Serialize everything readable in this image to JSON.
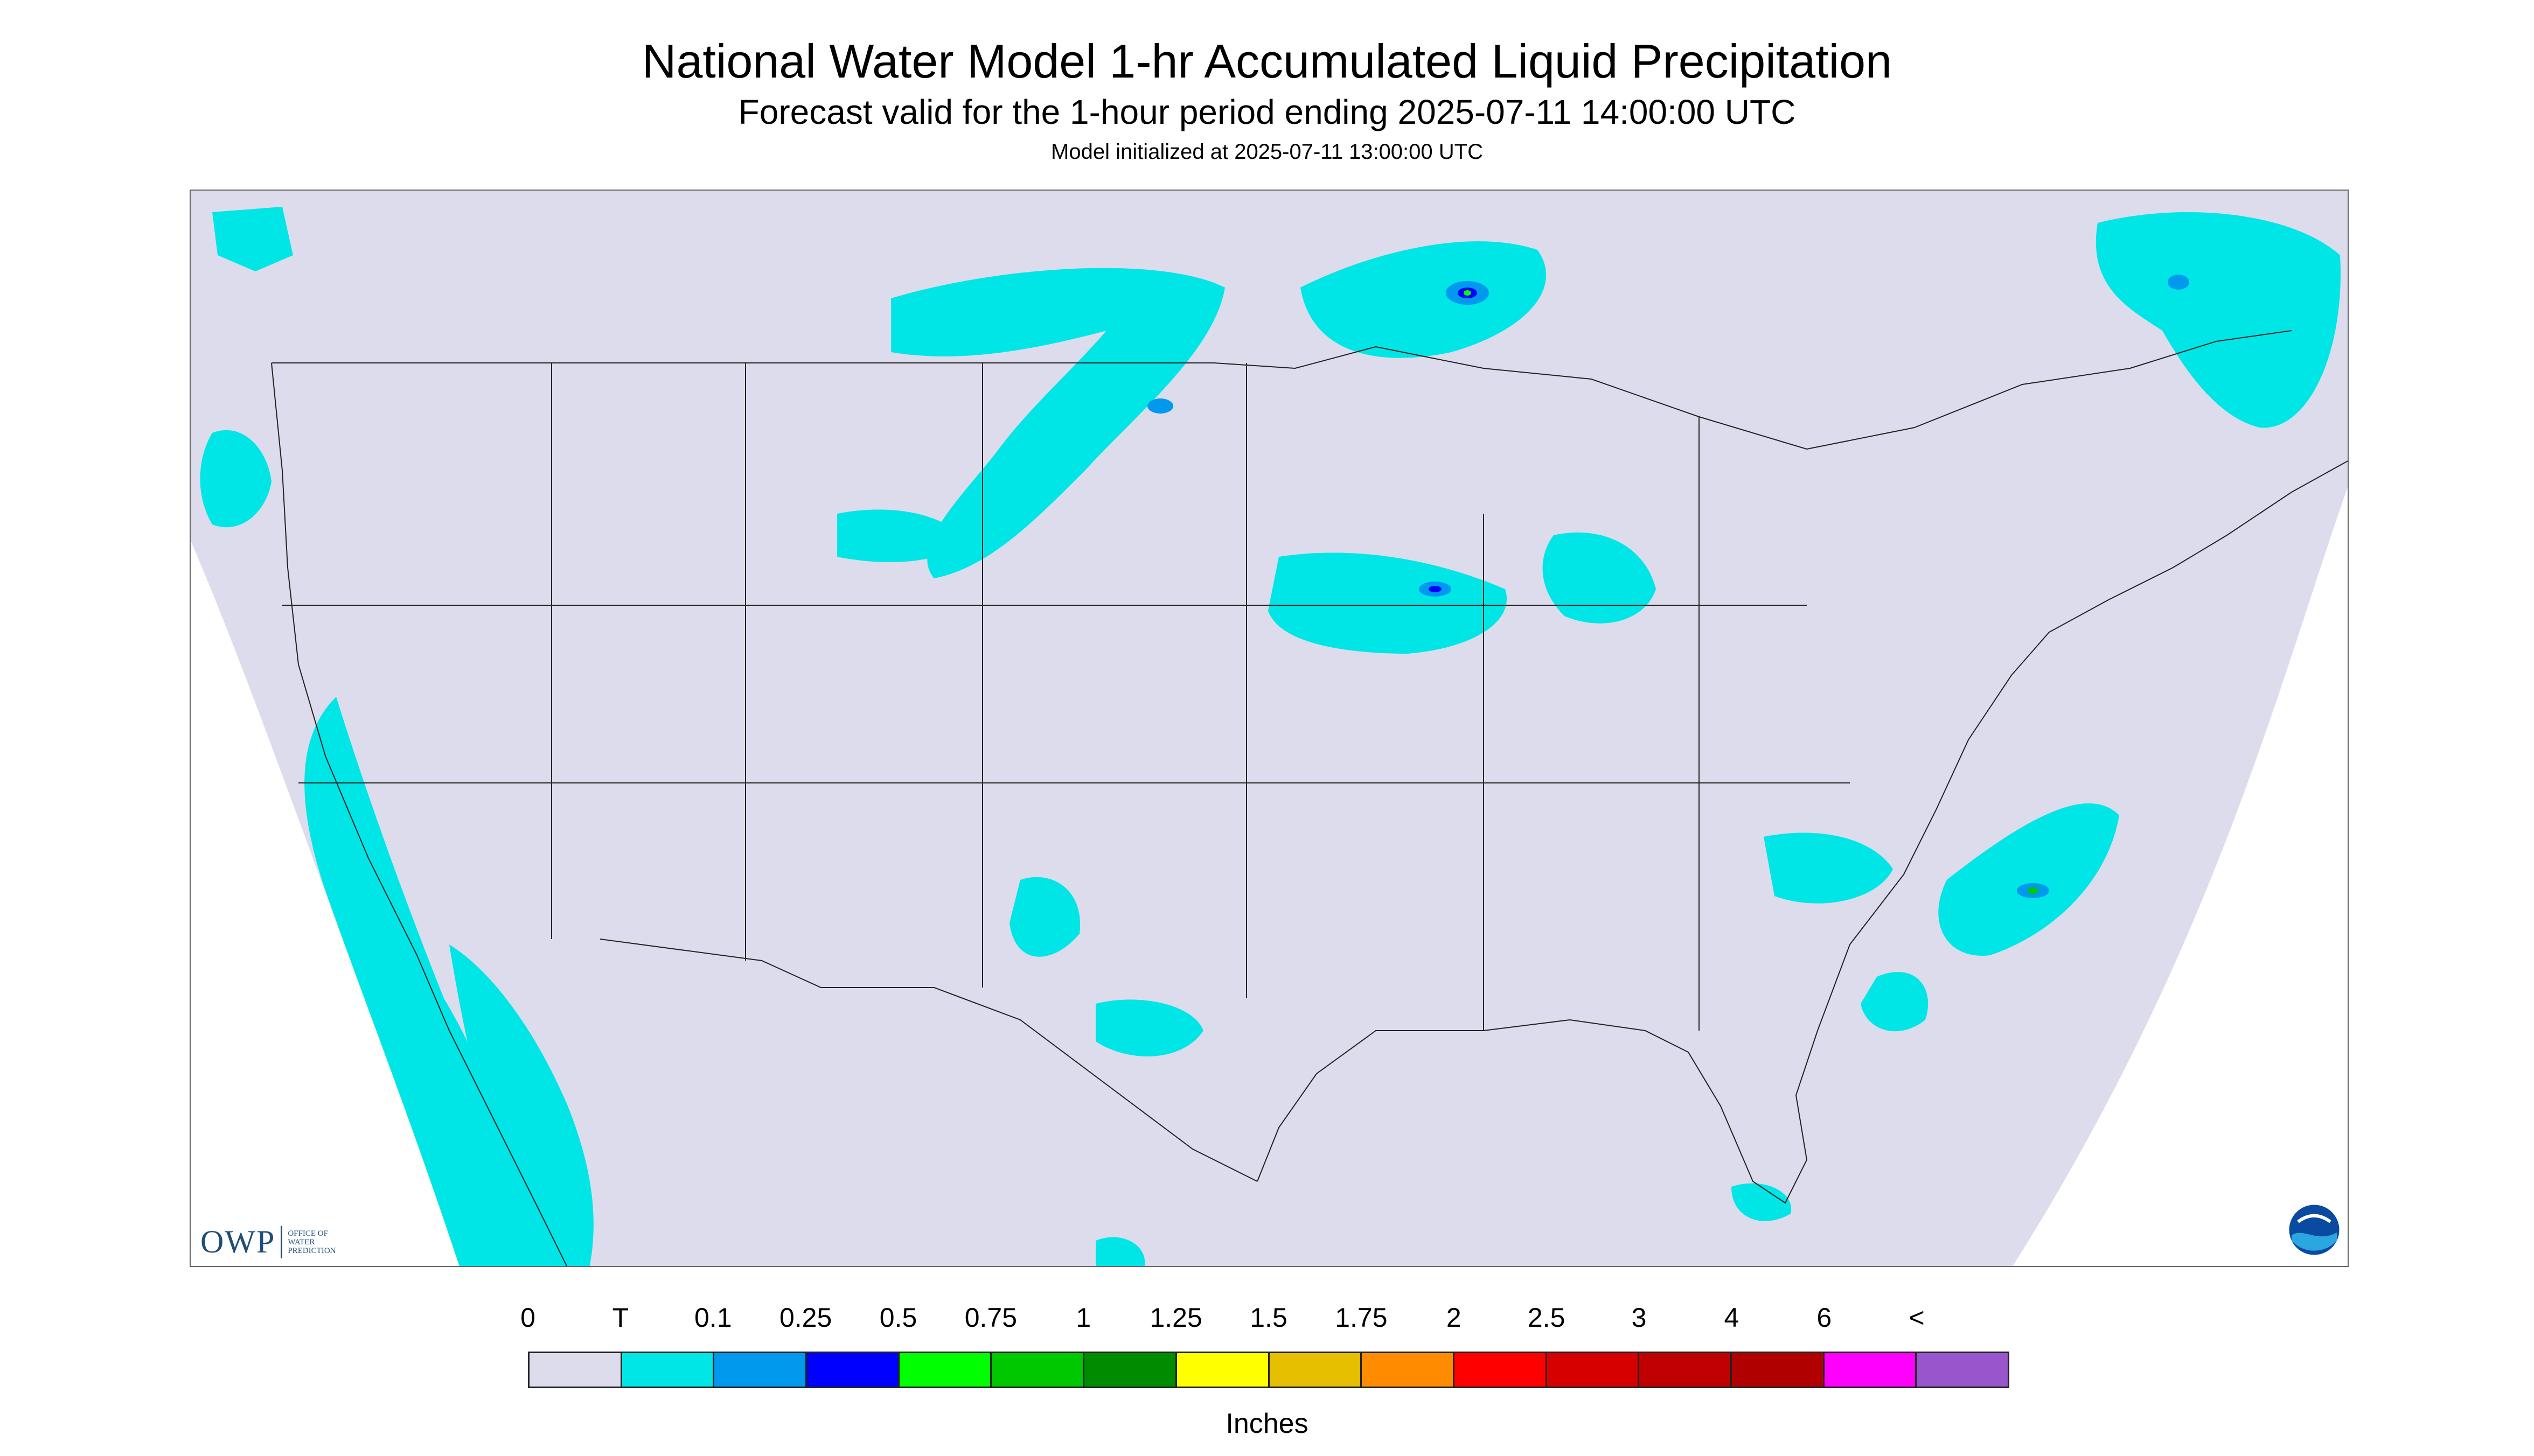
{
  "title": "National Water Model 1-hr Accumulated Liquid Precipitation",
  "subtitle": "Forecast valid for the 1-hour period ending 2025-07-11 14:00:00 UTC",
  "init_line": "Model initialized at 2025-07-11 13:00:00 UTC",
  "colors": {
    "domain_fill": "#dcdcec",
    "outside_fill": "#ffffff",
    "borders": "#222222",
    "precip_trace": "#00e6e6",
    "precip_0_1": "#0099ee",
    "precip_0_25": "#0000ff"
  },
  "colorbar": {
    "labels": [
      "0",
      "T",
      "0.1",
      "0.25",
      "0.5",
      "0.75",
      "1",
      "1.25",
      "1.5",
      "1.75",
      "2",
      "2.5",
      "3",
      "4",
      "6",
      "<"
    ],
    "colors": [
      "#dcdcec",
      "#00e6e6",
      "#0099ee",
      "#0000ff",
      "#00ff00",
      "#00c800",
      "#008c00",
      "#ffff00",
      "#e6c000",
      "#ff8c00",
      "#ff0000",
      "#d70000",
      "#c00000",
      "#b00000",
      "#ff00ff",
      "#9955cc"
    ],
    "units": "Inches"
  },
  "logos": {
    "owp_text": "OWP",
    "owp_small": "OFFICE OF\nWATER\nPREDICTION",
    "owp_icon": "owp-logo",
    "noaa_icon": "noaa-logo"
  }
}
